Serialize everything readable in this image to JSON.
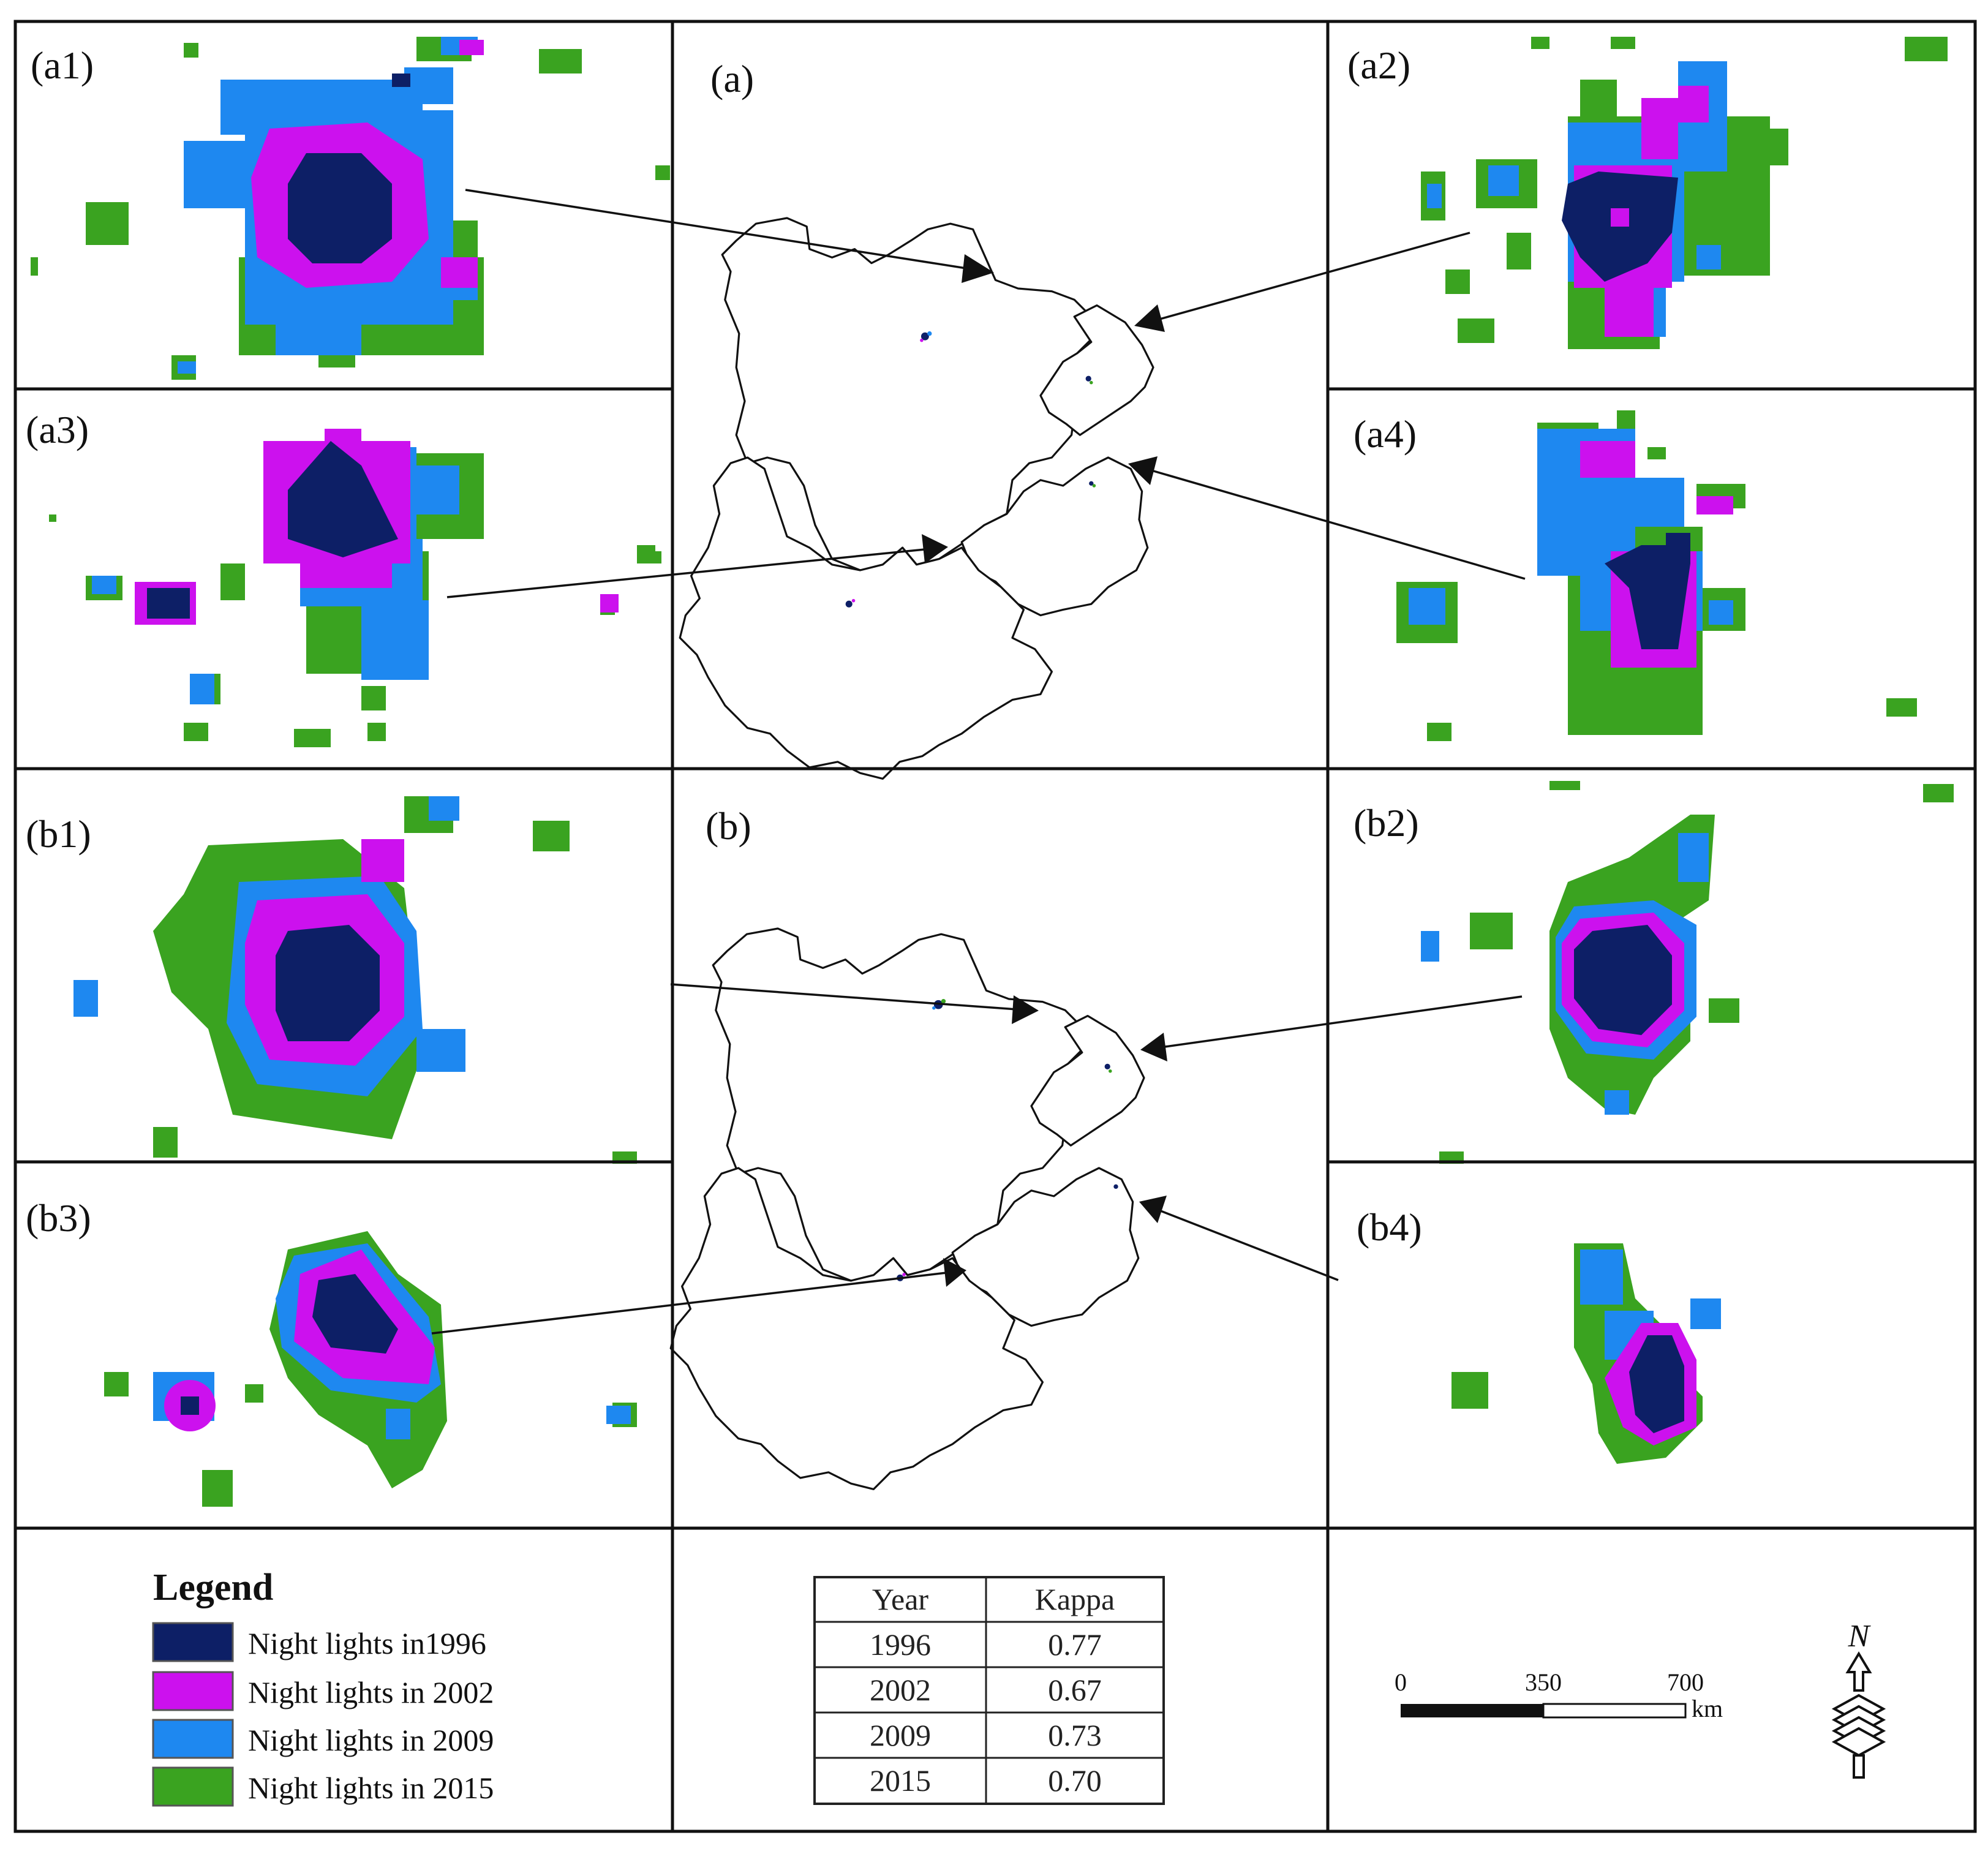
{
  "colors": {
    "night_1996": "#0d1f66",
    "night_2002": "#cc11ee",
    "night_2009": "#1e88f0",
    "night_2015": "#3aa320"
  },
  "panels": {
    "a": "(a)",
    "a1": "(a1)",
    "a2": "(a2)",
    "a3": "(a3)",
    "a4": "(a4)",
    "b": "(b)",
    "b1": "(b1)",
    "b2": "(b2)",
    "b3": "(b3)",
    "b4": "(b4)"
  },
  "legend": {
    "title": "Legend",
    "items": [
      {
        "label": "Night lights in1996",
        "color": "#0d1f66"
      },
      {
        "label": "Night lights in 2002",
        "color": "#cc11ee"
      },
      {
        "label": "Night lights in 2009",
        "color": "#1e88f0"
      },
      {
        "label": "Night lights in 2015",
        "color": "#3aa320"
      }
    ]
  },
  "kappa_table": {
    "headers": [
      "Year",
      "Kappa"
    ],
    "rows": [
      [
        "1996",
        "0.77"
      ],
      [
        "2002",
        "0.67"
      ],
      [
        "2009",
        "0.73"
      ],
      [
        "2015",
        "0.70"
      ]
    ]
  },
  "scale_bar": {
    "ticks": [
      "0",
      "350",
      "700"
    ],
    "unit": "km"
  },
  "north_arrow": {
    "label": "N",
    "icon": "north-arrow-icon"
  }
}
